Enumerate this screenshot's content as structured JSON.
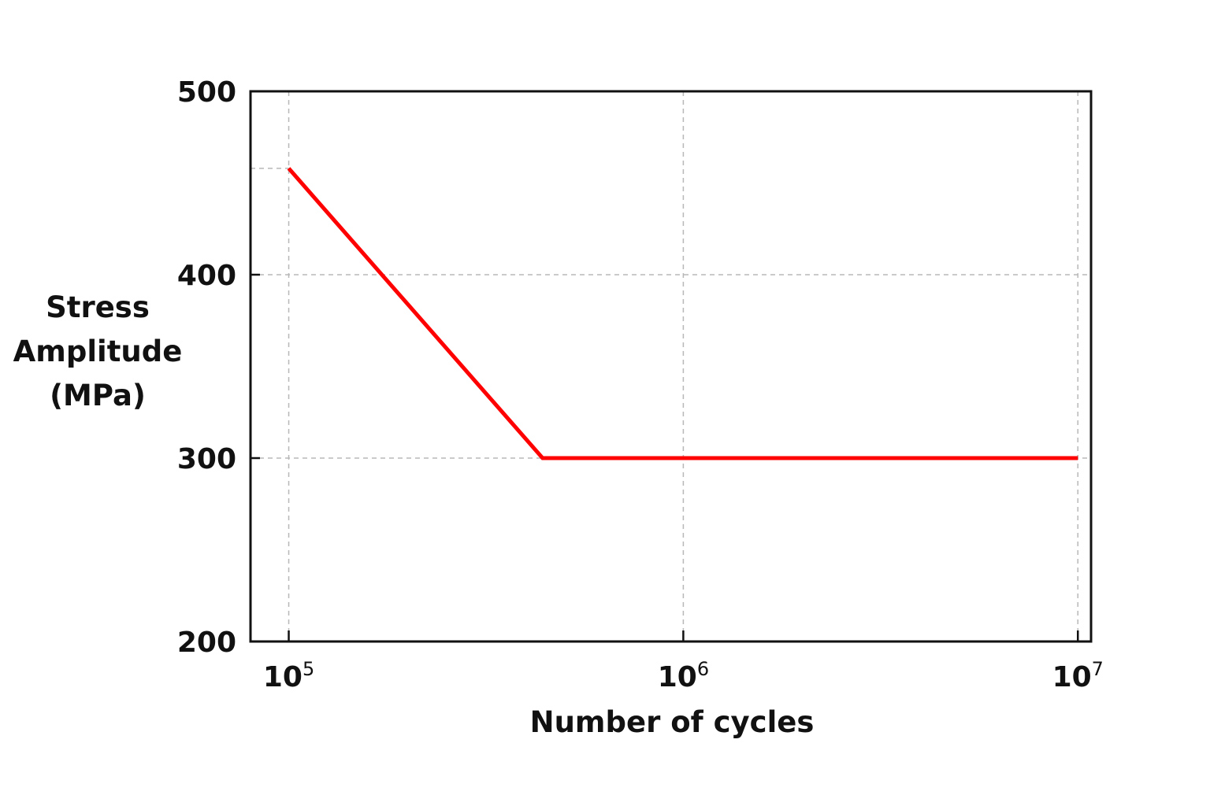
{
  "chart_data": {
    "type": "line",
    "title": "",
    "xlabel": "Number of cycles",
    "ylabel": [
      "Stress",
      "Amplitude",
      "(MPa)"
    ],
    "x_scale": "log",
    "xlim": [
      80000,
      10800000
    ],
    "ylim": [
      200,
      500
    ],
    "x_ticks": [
      {
        "value": 100000,
        "base": "10",
        "exp": "5"
      },
      {
        "value": 1000000,
        "base": "10",
        "exp": "6"
      },
      {
        "value": 10000000,
        "base": "10",
        "exp": "7"
      }
    ],
    "y_ticks": [
      200,
      300,
      400,
      500
    ],
    "y_tick_labels": [
      "200",
      "300",
      "400",
      "500"
    ],
    "grid": true,
    "series": [
      {
        "color": "#ff0000",
        "x": [
          100000,
          440000,
          10000000
        ],
        "y": [
          458,
          300,
          300
        ]
      }
    ]
  }
}
